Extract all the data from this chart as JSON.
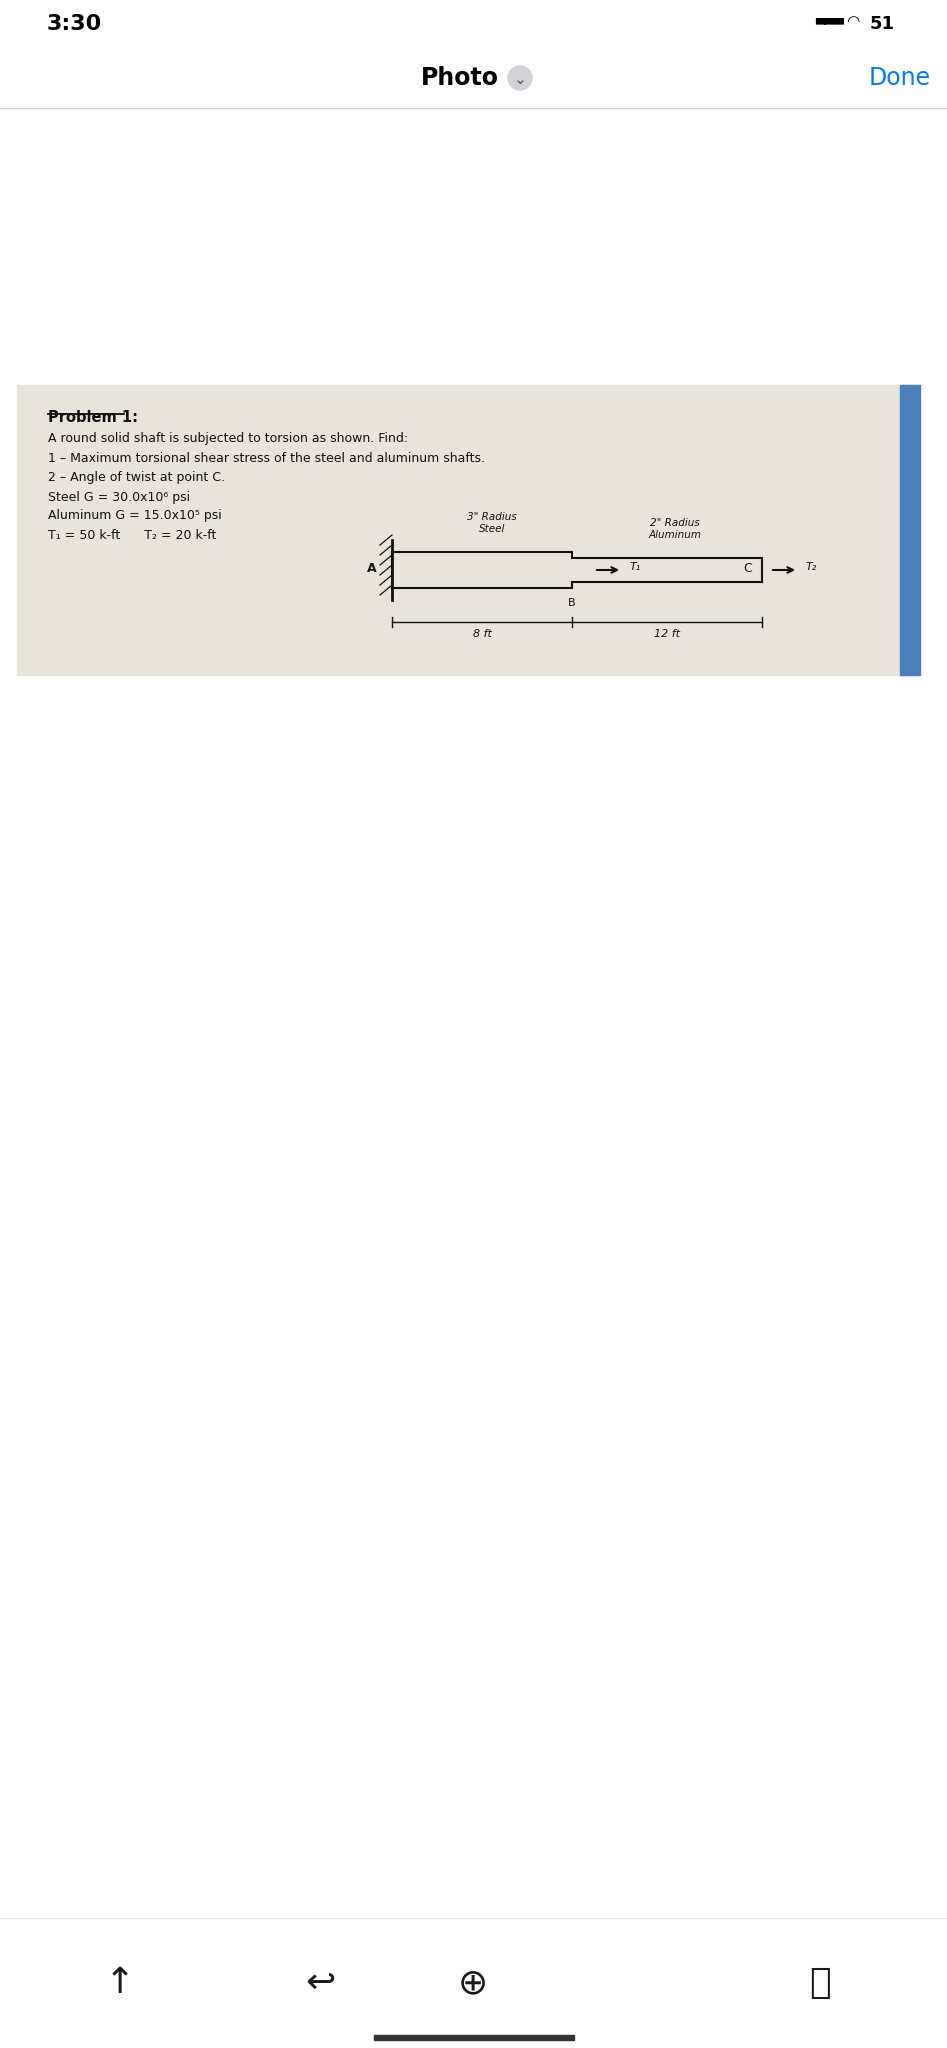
{
  "bg_color": "#f2f2f7",
  "paper_color": "#e8e4dc",
  "white_bg": "#ffffff",
  "status_time": "3:30",
  "status_battery": "51",
  "nav_photo": "Photo",
  "nav_done": "Done",
  "problem_title": "Problem 1:",
  "problem_desc": "A round solid shaft is subjected to torsion as shown. Find:",
  "item1": "1 – Maximum torsional shear stress of the steel and aluminum shafts.",
  "item2": "2 – Angle of twist at point C.",
  "steel_g": "Steel G = 30.0x10⁶ psi",
  "alum_g": "Aluminum G = 15.0x10⁵ psi",
  "t1_label": "T₁ = 50 k-ft",
  "t2_label": "T₂ = 20 k-ft",
  "steel_radius": "3\" Radius",
  "steel_label": "Steel",
  "alum_radius": "2\" Radius",
  "alum_label": "Aluminum",
  "dim1": "8 ft",
  "dim2": "12 ft",
  "point_a": "A",
  "point_b": "B",
  "point_c": "C",
  "t1_arrow": "T₁",
  "t2_arrow": "T₂",
  "ink_color": "#111111",
  "blue_done": "#007aff",
  "blue_strip": "#4a7fbc",
  "wall_color": "#1a1a1a"
}
